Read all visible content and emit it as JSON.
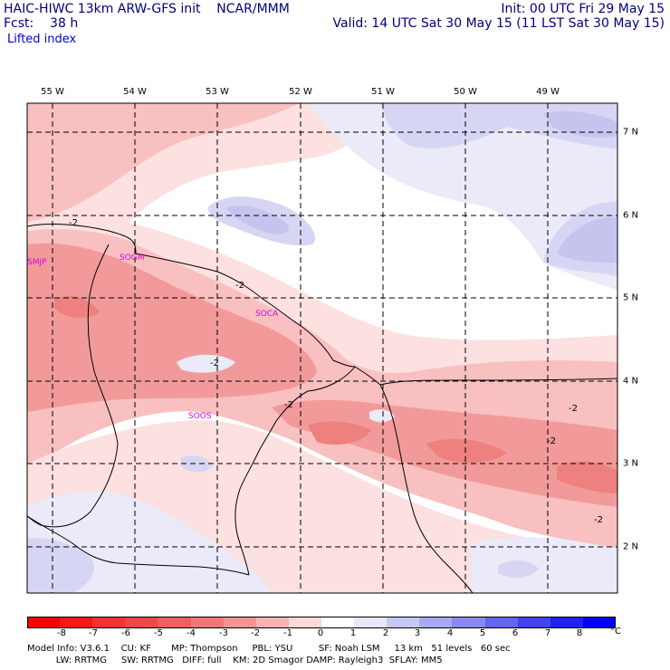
{
  "header": {
    "model_line": "HAIC-HIWC 13km ARW-GFS init    NCAR/MMM",
    "fcst_line": "Fcst:    38 h",
    "field": "Lifted index",
    "init_line": "Init: 00 UTC Fri 29 May 15",
    "valid_line": "Valid: 14 UTC Sat 30 May 15 (11 LST Sat 30 May 15)"
  },
  "map": {
    "lon_labels": [
      "55 W",
      "54 W",
      "53 W",
      "52 W",
      "51 W",
      "50 W",
      "49 W"
    ],
    "lat_labels": [
      "7 N",
      "6 N",
      "5 N",
      "4 N",
      "3 N",
      "2 N"
    ],
    "stations": [
      "SMJP",
      "SOGM",
      "SOCA",
      "SOOS"
    ],
    "contour_labels": [
      "-2",
      "-2",
      "-2",
      "-2",
      "-2",
      "-2",
      "-2"
    ],
    "colors": {
      "neg_light": "#fde0e0",
      "neg_mid": "#f8c0c0",
      "neg_strong": "#f29a9a",
      "neg_deep": "#ee8080",
      "pos_light": "#eaeaf8",
      "pos_mid": "#d6d6f4",
      "pos_strong": "#c4c4ee",
      "station": "#e000e0"
    }
  },
  "colorbar": {
    "ticks": [
      "-8",
      "-7",
      "-6",
      "-5",
      "-4",
      "-3",
      "-2",
      "-1",
      "0",
      "1",
      "2",
      "3",
      "4",
      "5",
      "6",
      "7",
      "8"
    ],
    "unit": "°C",
    "colors": [
      "#ff0000",
      "#f81818",
      "#f43030",
      "#f04848",
      "#ee6060",
      "#f07878",
      "#f49494",
      "#f8b4b4",
      "#fcd8d8",
      "#ffffff",
      "#e8e8fc",
      "#c8c8f8",
      "#a8a8f4",
      "#8888f0",
      "#6666ec",
      "#4444ec",
      "#2222f0",
      "#0000ff"
    ]
  },
  "footer": {
    "line1": "Model Info: V3.6.1    CU: KF       MP: Thompson     PBL: YSU         SF: Noah LSM     13 km   51 levels   60 sec",
    "line2": "          LW: RRTMG     SW: RRTMG   DIFF: full    KM: 2D Smagor DAMP: Rayleigh3  SFLAY: MM5"
  }
}
